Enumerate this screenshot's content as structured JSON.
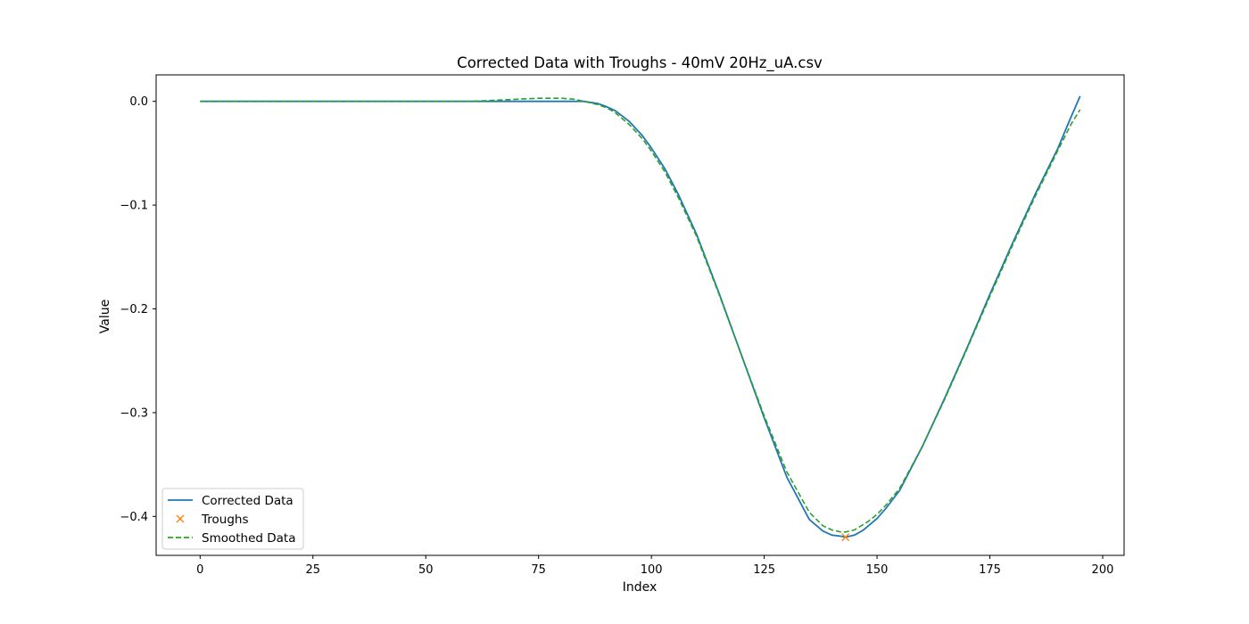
{
  "chart_data": {
    "type": "line",
    "title": "Corrected Data with Troughs - 40mV 20Hz_uA.csv",
    "xlabel": "Index",
    "ylabel": "Value",
    "xlim": [
      -9.75,
      204.75
    ],
    "ylim": [
      -0.4375,
      0.0255
    ],
    "xticks": [
      0,
      25,
      50,
      75,
      100,
      125,
      150,
      175,
      200
    ],
    "yticks": [
      0.0,
      -0.1,
      -0.2,
      -0.3,
      -0.4
    ],
    "xtick_labels": [
      "0",
      "25",
      "50",
      "75",
      "100",
      "125",
      "150",
      "175",
      "200"
    ],
    "ytick_labels": [
      "0.0",
      "−0.1",
      "−0.2",
      "−0.3",
      "−0.4"
    ],
    "grid": false,
    "legend_position": "lower-left",
    "series": [
      {
        "name": "Corrected Data",
        "style": "solid",
        "color": "#1f77b4",
        "x": [
          0,
          5,
          10,
          15,
          20,
          25,
          30,
          35,
          40,
          45,
          50,
          55,
          60,
          65,
          70,
          75,
          80,
          85,
          88,
          90,
          92,
          95,
          98,
          100,
          103,
          106,
          110,
          115,
          120,
          125,
          130,
          135,
          138,
          140,
          142,
          143,
          145,
          147,
          150,
          152,
          155,
          160,
          165,
          170,
          175,
          180,
          185,
          190,
          193,
          195
        ],
        "y": [
          0.0,
          0.0,
          0.0,
          0.0,
          0.0,
          0.0,
          0.0,
          0.0,
          0.0,
          0.0,
          0.0,
          0.0,
          0.0,
          0.0,
          0.0,
          0.0,
          0.0,
          0.0,
          -0.002,
          -0.005,
          -0.009,
          -0.019,
          -0.033,
          -0.045,
          -0.065,
          -0.09,
          -0.128,
          -0.185,
          -0.245,
          -0.305,
          -0.362,
          -0.403,
          -0.414,
          -0.418,
          -0.419,
          -0.42,
          -0.418,
          -0.413,
          -0.402,
          -0.392,
          -0.375,
          -0.333,
          -0.286,
          -0.237,
          -0.186,
          -0.137,
          -0.09,
          -0.046,
          -0.015,
          0.005
        ]
      },
      {
        "name": "Troughs",
        "style": "marker-x",
        "color": "#ff7f0e",
        "x": [
          143
        ],
        "y": [
          -0.42
        ]
      },
      {
        "name": "Smoothed Data",
        "style": "dashed",
        "color": "#2ca02c",
        "x": [
          0,
          10,
          20,
          30,
          40,
          50,
          60,
          65,
          70,
          75,
          78,
          80,
          83,
          85,
          88,
          90,
          92,
          95,
          98,
          100,
          103,
          106,
          110,
          115,
          120,
          125,
          130,
          135,
          138,
          140,
          142,
          143,
          145,
          148,
          150,
          152,
          155,
          160,
          165,
          170,
          175,
          180,
          185,
          190,
          193,
          195
        ],
        "y": [
          0.0,
          0.0,
          0.0,
          0.0,
          0.0,
          0.0,
          0.0,
          0.001,
          0.002,
          0.003,
          0.003,
          0.003,
          0.002,
          0.0,
          -0.003,
          -0.006,
          -0.011,
          -0.022,
          -0.036,
          -0.048,
          -0.068,
          -0.093,
          -0.13,
          -0.186,
          -0.245,
          -0.303,
          -0.357,
          -0.396,
          -0.409,
          -0.413,
          -0.415,
          -0.415,
          -0.413,
          -0.405,
          -0.398,
          -0.389,
          -0.373,
          -0.333,
          -0.287,
          -0.238,
          -0.188,
          -0.139,
          -0.092,
          -0.048,
          -0.022,
          -0.008
        ]
      }
    ]
  }
}
